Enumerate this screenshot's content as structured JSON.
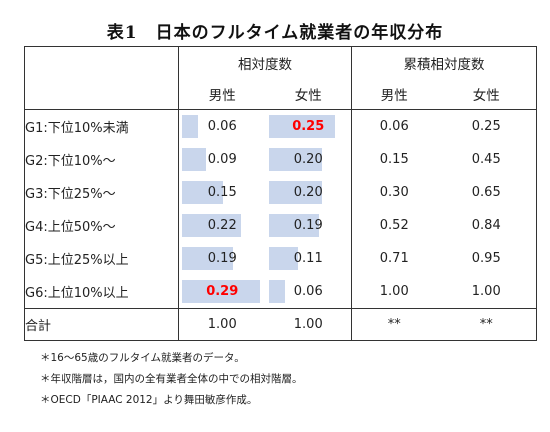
{
  "title": "表1　日本のフルタイム就業者の年収分布",
  "table": {
    "group_headers": {
      "relative": "相対度数",
      "cumulative": "累積相対度数"
    },
    "sub_headers": {
      "male": "男性",
      "female": "女性",
      "cum_male": "男性",
      "cum_female": "女性"
    },
    "rows": [
      {
        "label": "G1:下位10%未満",
        "male": "0.06",
        "female": "0.25",
        "cum_male": "0.06",
        "cum_female": "0.25",
        "male_share": 0.06,
        "female_share": 0.25,
        "male_highlight": false,
        "female_highlight": true
      },
      {
        "label": "G2:下位10%～",
        "male": "0.09",
        "female": "0.20",
        "cum_male": "0.15",
        "cum_female": "0.45",
        "male_share": 0.09,
        "female_share": 0.2,
        "male_highlight": false,
        "female_highlight": false
      },
      {
        "label": "G3:下位25%～",
        "male": "0.15",
        "female": "0.20",
        "cum_male": "0.30",
        "cum_female": "0.65",
        "male_share": 0.15,
        "female_share": 0.2,
        "male_highlight": false,
        "female_highlight": false
      },
      {
        "label": "G4:上位50%～",
        "male": "0.22",
        "female": "0.19",
        "cum_male": "0.52",
        "cum_female": "0.84",
        "male_share": 0.22,
        "female_share": 0.19,
        "male_highlight": false,
        "female_highlight": false
      },
      {
        "label": "G5:上位25%以上",
        "male": "0.19",
        "female": "0.11",
        "cum_male": "0.71",
        "cum_female": "0.95",
        "male_share": 0.19,
        "female_share": 0.11,
        "male_highlight": false,
        "female_highlight": false
      },
      {
        "label": "G6:上位10%以上",
        "male": "0.29",
        "female": "0.06",
        "cum_male": "1.00",
        "cum_female": "1.00",
        "male_share": 0.29,
        "female_share": 0.06,
        "male_highlight": true,
        "female_highlight": false
      }
    ],
    "total": {
      "label": "合計",
      "male": "1.00",
      "female": "1.00",
      "cum_male": "**",
      "cum_female": "**"
    },
    "highlight_color": "#ff0000",
    "bar_color": "#c9d6ec"
  },
  "notes": [
    "＊16～65歳のフルタイム就業者のデータ。",
    "＊年収階層は，国内の全有業者全体の中での相対階層。",
    "＊OECD「PIAAC 2012」より舞田敏彦作成。"
  ]
}
